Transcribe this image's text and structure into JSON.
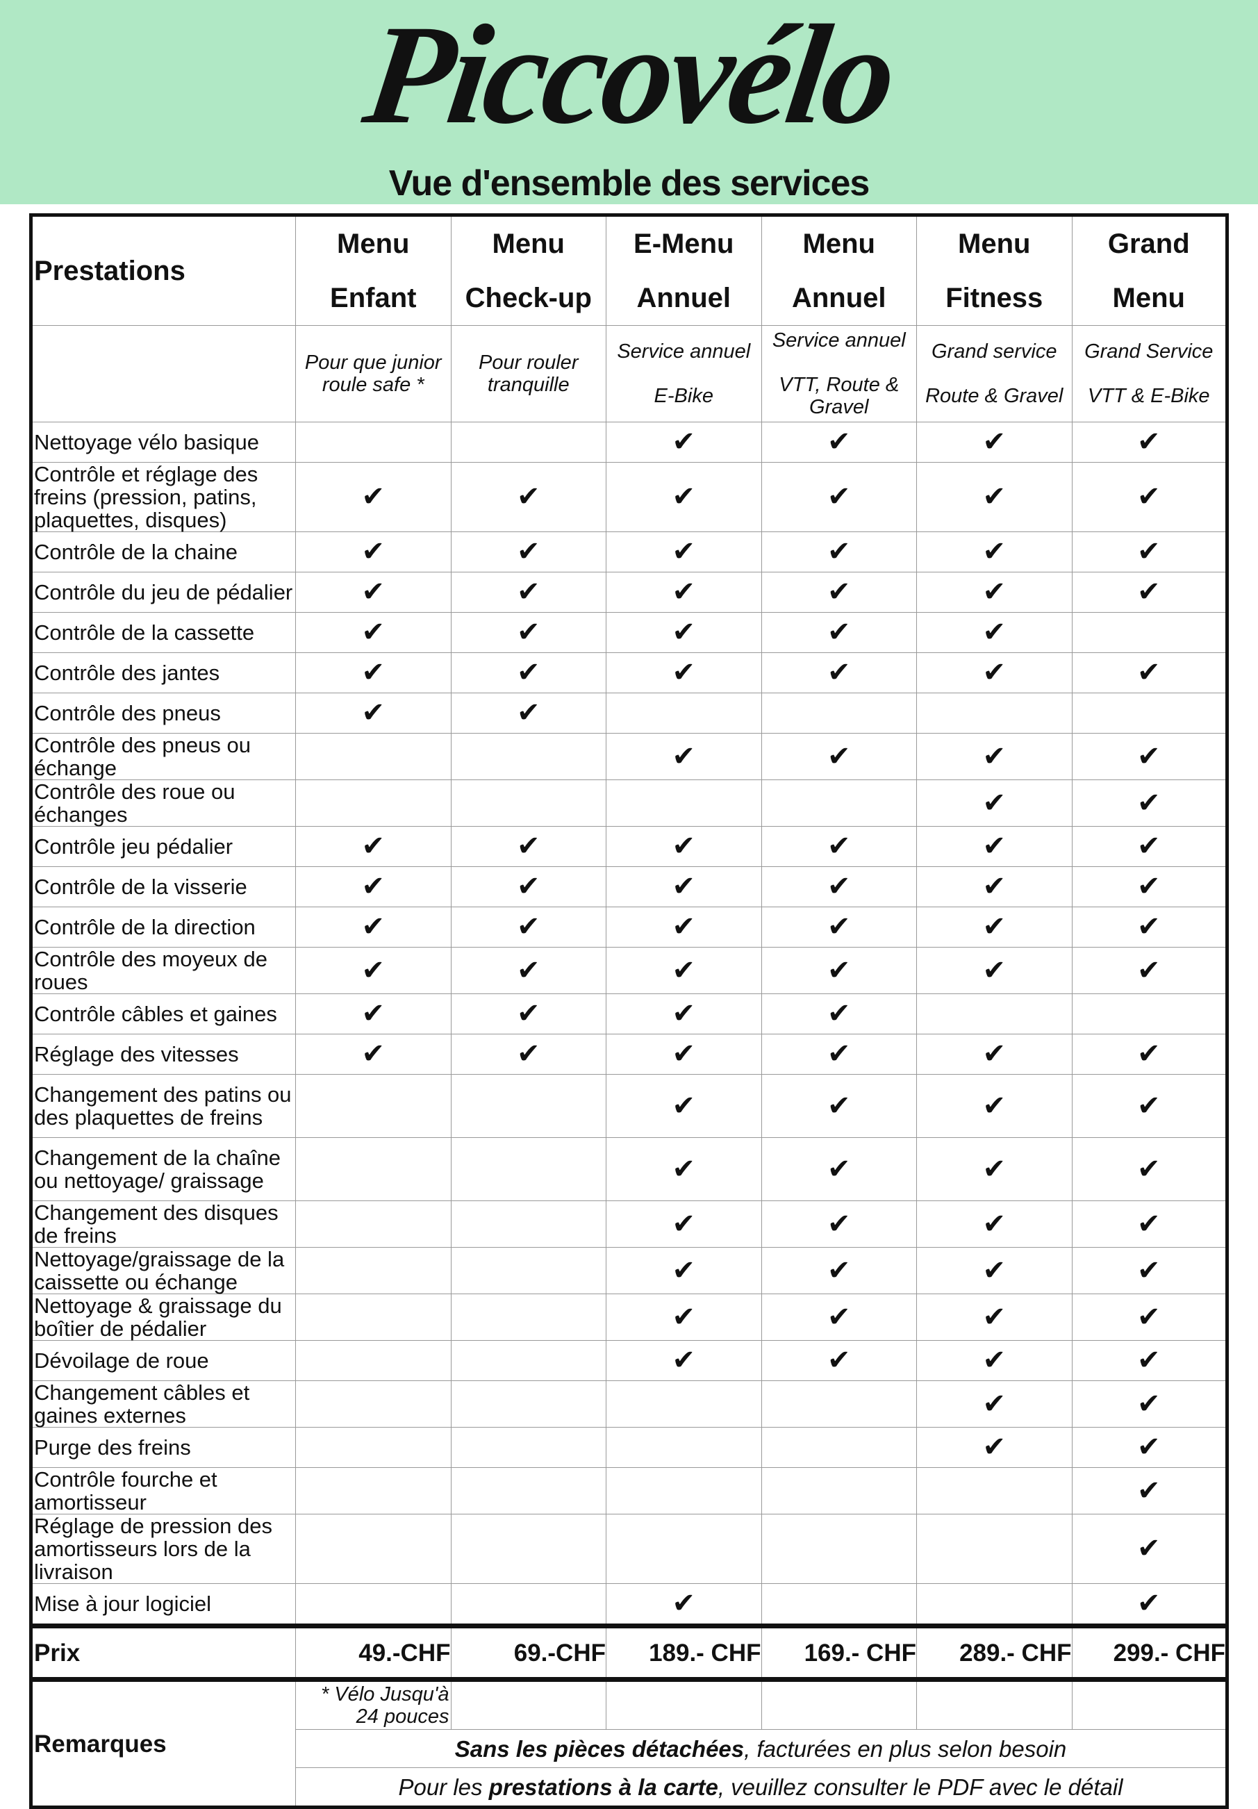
{
  "header": {
    "logo_text": "Piccovélo",
    "subtitle": "Vue d'ensemble des services",
    "background_color": "#b0e8c5"
  },
  "table": {
    "corner_label": "Prestations",
    "columns": [
      {
        "line1": "Menu",
        "line2": "Enfant",
        "desc": [
          "Pour que junior",
          "roule safe *"
        ],
        "price": "49.-CHF"
      },
      {
        "line1": "Menu",
        "line2": "Check-up",
        "desc": [
          "Pour rouler",
          "tranquille"
        ],
        "price": "69.-CHF"
      },
      {
        "line1": "E-Menu",
        "line2": "Annuel",
        "desc": [
          "Service annuel",
          "E-Bike"
        ],
        "price": "189.- CHF"
      },
      {
        "line1": "Menu",
        "line2": "Annuel",
        "desc": [
          "Service annuel",
          "VTT, Route & Gravel"
        ],
        "price": "169.- CHF"
      },
      {
        "line1": "Menu",
        "line2": "Fitness",
        "desc": [
          "Grand service",
          "Route & Gravel"
        ],
        "price": "289.- CHF"
      },
      {
        "line1": "Grand",
        "line2": "Menu",
        "desc": [
          "Grand Service",
          "VTT & E-Bike"
        ],
        "price": "299.- CHF"
      }
    ],
    "check_symbol": "✔",
    "rows": [
      {
        "label": "Nettoyage vélo basique",
        "checks": [
          0,
          0,
          1,
          1,
          1,
          1
        ]
      },
      {
        "label": "Contrôle et réglage des freins (pression, patins, plaquettes, disques)",
        "checks": [
          1,
          1,
          1,
          1,
          1,
          1
        ],
        "tall": true
      },
      {
        "label": "Contrôle de la chaine",
        "checks": [
          1,
          1,
          1,
          1,
          1,
          1
        ]
      },
      {
        "label": "Contrôle du jeu de pédalier",
        "checks": [
          1,
          1,
          1,
          1,
          1,
          1
        ]
      },
      {
        "label": "Contrôle de la cassette",
        "checks": [
          1,
          1,
          1,
          1,
          1,
          0
        ]
      },
      {
        "label": "Contrôle des jantes",
        "checks": [
          1,
          1,
          1,
          1,
          1,
          1
        ]
      },
      {
        "label": "Contrôle des pneus",
        "checks": [
          1,
          1,
          0,
          0,
          0,
          0
        ]
      },
      {
        "label": "Contrôle des pneus ou échange",
        "checks": [
          0,
          0,
          1,
          1,
          1,
          1
        ]
      },
      {
        "label": "Contrôle des roue ou échanges",
        "checks": [
          0,
          0,
          0,
          0,
          1,
          1
        ]
      },
      {
        "label": "Contrôle jeu pédalier",
        "checks": [
          1,
          1,
          1,
          1,
          1,
          1
        ]
      },
      {
        "label": "Contrôle de la visserie",
        "checks": [
          1,
          1,
          1,
          1,
          1,
          1
        ]
      },
      {
        "label": "Contrôle de la direction",
        "checks": [
          1,
          1,
          1,
          1,
          1,
          1
        ]
      },
      {
        "label": "Contrôle des moyeux de roues",
        "checks": [
          1,
          1,
          1,
          1,
          1,
          1
        ]
      },
      {
        "label": "Contrôle câbles et gaines",
        "checks": [
          1,
          1,
          1,
          1,
          0,
          0
        ]
      },
      {
        "label": "Réglage des vitesses",
        "checks": [
          1,
          1,
          1,
          1,
          1,
          1
        ]
      },
      {
        "label": "Changement des patins ou des plaquettes de freins",
        "checks": [
          0,
          0,
          1,
          1,
          1,
          1
        ],
        "tall": true
      },
      {
        "label": "Changement de la chaîne ou nettoyage/ graissage",
        "checks": [
          0,
          0,
          1,
          1,
          1,
          1
        ],
        "tall": true
      },
      {
        "label": "Changement des disques de freins",
        "checks": [
          0,
          0,
          1,
          1,
          1,
          1
        ]
      },
      {
        "label": "Nettoyage/graissage de la caissette ou échange",
        "checks": [
          0,
          0,
          1,
          1,
          1,
          1
        ]
      },
      {
        "label": "Nettoyage & graissage du boîtier de pédalier",
        "checks": [
          0,
          0,
          1,
          1,
          1,
          1
        ]
      },
      {
        "label": "Dévoilage de roue",
        "checks": [
          0,
          0,
          1,
          1,
          1,
          1
        ]
      },
      {
        "label": "Changement câbles et gaines externes",
        "checks": [
          0,
          0,
          0,
          0,
          1,
          1
        ]
      },
      {
        "label": "Purge des freins",
        "checks": [
          0,
          0,
          0,
          0,
          1,
          1
        ]
      },
      {
        "label": "Contrôle fourche et amortisseur",
        "checks": [
          0,
          0,
          0,
          0,
          0,
          1
        ]
      },
      {
        "label": "Réglage de pression des amortisseurs lors de la livraison",
        "checks": [
          0,
          0,
          0,
          0,
          0,
          1
        ],
        "tall": true
      },
      {
        "label": "Mise à jour logiciel",
        "checks": [
          0,
          0,
          1,
          0,
          0,
          1
        ]
      }
    ],
    "price_label": "Prix",
    "remarks_label": "Remarques",
    "remark_note": "* Vélo Jusqu'à 24 pouces",
    "remark1_bold": "Sans les pièces détachées",
    "remark1_rest": ", facturées en plus selon besoin",
    "remark2_pre": "Pour les ",
    "remark2_bold": "prestations à la carte",
    "remark2_rest": ", veuillez consulter le PDF avec le détail"
  }
}
